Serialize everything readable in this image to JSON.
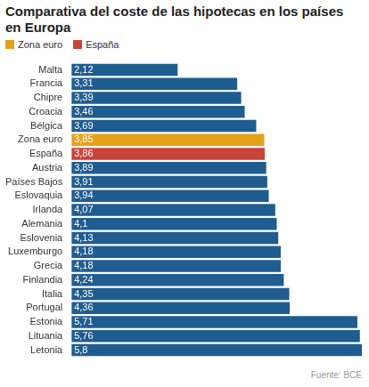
{
  "chart_data": {
    "type": "bar",
    "orientation": "horizontal",
    "title": "Comparativa del coste de las hipotecas en los países en Europa",
    "legend": "top-left",
    "legend_entries": [
      {
        "name": "Zona euro",
        "color": "#e3a21a"
      },
      {
        "name": "España",
        "color": "#c8443a"
      }
    ],
    "source": "Fuente: BCE",
    "categories": [
      "Malta",
      "Francia",
      "Chipre",
      "Croacia",
      "Bélgica",
      "Zona euro",
      "España",
      "Austria",
      "Países Bajos",
      "Eslovaquia",
      "Irlanda",
      "Alemania",
      "Eslovenia",
      "Luxemburgo",
      "Grecia",
      "Finlandia",
      "Italia",
      "Portugal",
      "Estonia",
      "Lituania",
      "Letonia"
    ],
    "values": [
      2.12,
      3.31,
      3.39,
      3.46,
      3.69,
      3.85,
      3.86,
      3.89,
      3.91,
      3.94,
      4.07,
      4.1,
      4.13,
      4.18,
      4.18,
      4.24,
      4.35,
      4.36,
      5.71,
      5.76,
      5.8
    ],
    "value_labels": [
      "2,12",
      "3,31",
      "3,39",
      "3,46",
      "3,69",
      "3,85",
      "3,86",
      "3,89",
      "3,91",
      "3,94",
      "4,07",
      "4,1",
      "4,13",
      "4,18",
      "4,18",
      "4,24",
      "4,35",
      "4,36",
      "5,71",
      "5,76",
      "5,8"
    ],
    "colors": [
      "#1f5d91",
      "#1f5d91",
      "#1f5d91",
      "#1f5d91",
      "#1f5d91",
      "#e3a21a",
      "#c8443a",
      "#1f5d91",
      "#1f5d91",
      "#1f5d91",
      "#1f5d91",
      "#1f5d91",
      "#1f5d91",
      "#1f5d91",
      "#1f5d91",
      "#1f5d91",
      "#1f5d91",
      "#1f5d91",
      "#1f5d91",
      "#1f5d91",
      "#1f5d91"
    ],
    "xlim": [
      0,
      5.8
    ],
    "grid": false,
    "data_labels": true,
    "tick_labels": "y"
  }
}
